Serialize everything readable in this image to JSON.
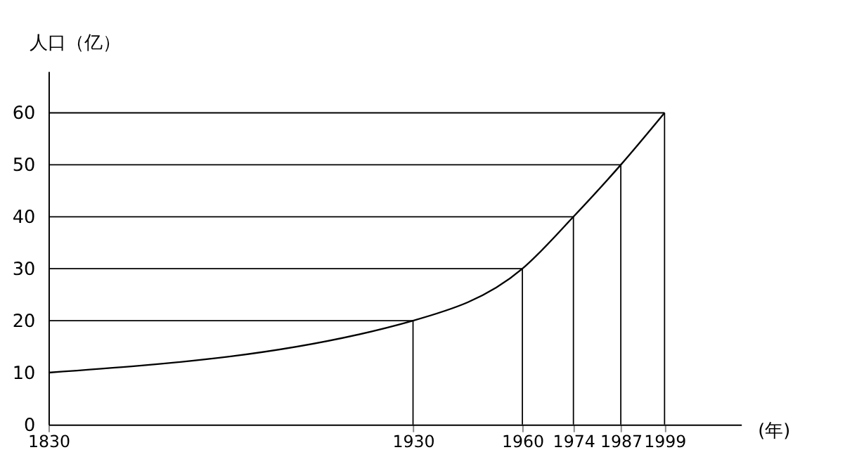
{
  "chart_data": {
    "type": "line",
    "ylabel": "人口（亿）",
    "xlabel": "(年)",
    "x": [
      1830,
      1930,
      1960,
      1974,
      1987,
      1999
    ],
    "series": [
      {
        "color": "#000000",
        "values": [
          10,
          20,
          30,
          40,
          50,
          60
        ]
      },
      {
        "color": "#000000",
        "x": [
          1930,
          1930
        ],
        "values": [
          0,
          20
        ]
      },
      {
        "color": "#000000",
        "x": [
          1960,
          1960
        ],
        "values": [
          0,
          30
        ]
      },
      {
        "color": "#000000",
        "x": [
          1974,
          1974
        ],
        "values": [
          0,
          40
        ]
      },
      {
        "color": "#000000",
        "x": [
          1987,
          1987
        ],
        "values": [
          0,
          50
        ]
      },
      {
        "color": "#000000",
        "x": [
          1999,
          1999
        ],
        "values": [
          0,
          60
        ]
      },
      {
        "color": "#000000",
        "x": [
          1830,
          1930
        ],
        "values": [
          20,
          20
        ]
      },
      {
        "color": "#000000",
        "x": [
          1830,
          1960
        ],
        "values": [
          30,
          30
        ]
      },
      {
        "color": "#000000",
        "x": [
          1830,
          1974
        ],
        "values": [
          40,
          40
        ]
      },
      {
        "color": "#000000",
        "x": [
          1830,
          1987
        ],
        "values": [
          50,
          50
        ]
      },
      {
        "color": "#000000",
        "x": [
          1830,
          1999
        ],
        "values": [
          60,
          60
        ]
      }
    ],
    "xlim": [
      1830,
      2020
    ],
    "xticks": [
      1830,
      1930,
      1960,
      1974,
      1987,
      1999
    ],
    "ylim": [
      0,
      68
    ],
    "yticks": [
      0,
      10,
      20,
      30,
      40,
      50,
      60
    ],
    "grid": false,
    "marker": "none",
    "line_style": "solid"
  }
}
